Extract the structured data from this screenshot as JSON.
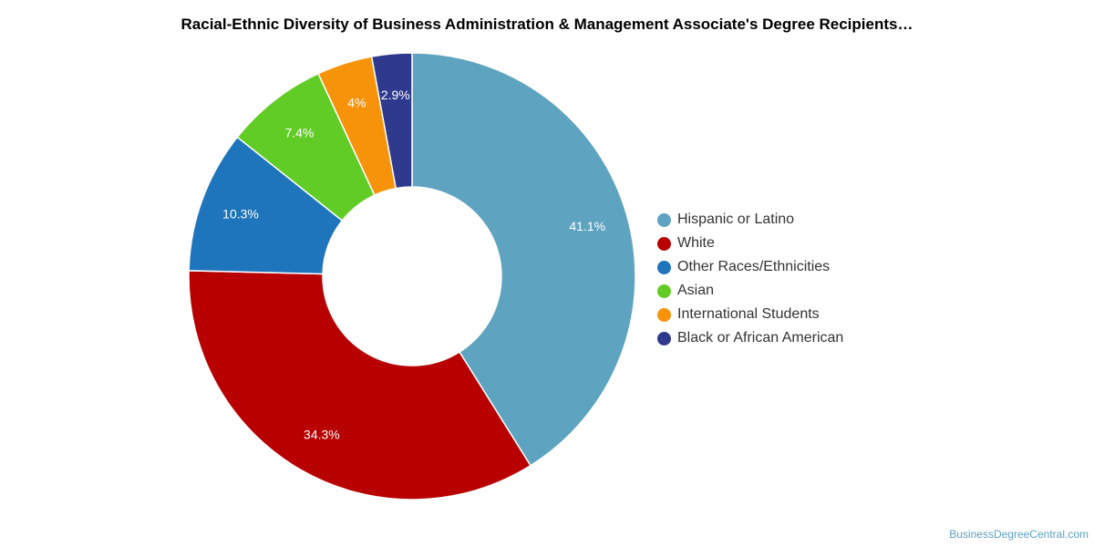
{
  "chart_data": {
    "type": "pie",
    "style": "donut",
    "title": "Racial-Ethnic Diversity of Business Administration & Management Associate's Degree Recipients…",
    "legend_position": "right",
    "slices": [
      {
        "label": "Hispanic or Latino",
        "value": 41.1,
        "display": "41.1%",
        "color": "#5ea3bf"
      },
      {
        "label": "White",
        "value": 34.3,
        "display": "34.3%",
        "color": "#b80000"
      },
      {
        "label": "Other Races/Ethnicities",
        "value": 10.3,
        "display": "10.3%",
        "color": "#1f75bb"
      },
      {
        "label": "Asian",
        "value": 7.4,
        "display": "7.4%",
        "color": "#62cc26"
      },
      {
        "label": "International Students",
        "value": 4.0,
        "display": "4%",
        "color": "#f7930a"
      },
      {
        "label": "Black or African American",
        "value": 2.9,
        "display": "2.9%",
        "color": "#2f3a8f"
      }
    ]
  },
  "footer": {
    "source": "BusinessDegreeCentral.com"
  }
}
